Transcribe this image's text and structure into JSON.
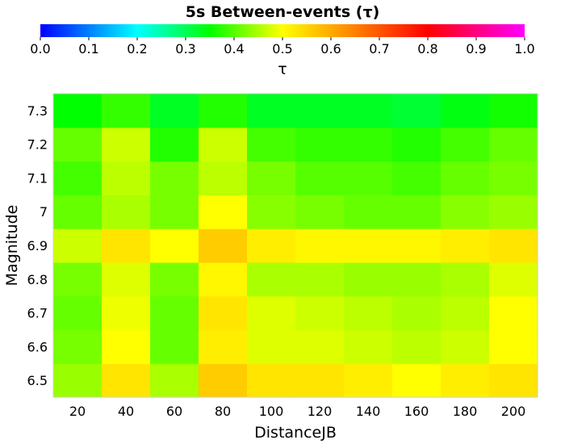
{
  "chart_data": {
    "type": "heatmap",
    "title": "5s Between-events (τ)",
    "xlabel": "DistanceJB",
    "ylabel": "Magnitude",
    "colorbar": {
      "label": "τ",
      "min": 0.0,
      "max": 1.0,
      "ticks": [
        "0.0",
        "0.1",
        "0.2",
        "0.3",
        "0.4",
        "0.5",
        "0.6",
        "0.7",
        "0.8",
        "0.9",
        "1.0"
      ],
      "colormap": "rainbow (blue-cyan-green-yellow-red-magenta)"
    },
    "x": [
      20,
      40,
      60,
      80,
      100,
      120,
      140,
      160,
      180,
      200
    ],
    "y": [
      6.5,
      6.6,
      6.7,
      6.8,
      6.9,
      7,
      7.1,
      7.2,
      7.3
    ],
    "x_tick_labels": [
      "20",
      "40",
      "60",
      "80",
      "100",
      "120",
      "140",
      "160",
      "180",
      "200"
    ],
    "y_tick_labels": [
      "6.5",
      "6.6",
      "6.7",
      "6.8",
      "6.9",
      "7",
      "7.1",
      "7.2",
      "7.3"
    ],
    "xlim": [
      10,
      210
    ],
    "ylim": [
      6.45,
      7.35
    ],
    "values": [
      [
        0.44,
        0.53,
        0.45,
        0.56,
        0.53,
        0.53,
        0.52,
        0.5,
        0.52,
        0.53
      ],
      [
        0.42,
        0.5,
        0.41,
        0.52,
        0.48,
        0.48,
        0.47,
        0.46,
        0.47,
        0.5
      ],
      [
        0.41,
        0.49,
        0.41,
        0.53,
        0.48,
        0.47,
        0.46,
        0.45,
        0.46,
        0.5
      ],
      [
        0.42,
        0.48,
        0.42,
        0.51,
        0.45,
        0.45,
        0.44,
        0.44,
        0.45,
        0.48
      ],
      [
        0.47,
        0.53,
        0.5,
        0.56,
        0.52,
        0.51,
        0.51,
        0.51,
        0.52,
        0.53
      ],
      [
        0.41,
        0.45,
        0.42,
        0.5,
        0.43,
        0.42,
        0.41,
        0.41,
        0.43,
        0.44
      ],
      [
        0.39,
        0.46,
        0.42,
        0.46,
        0.42,
        0.4,
        0.4,
        0.39,
        0.41,
        0.42
      ],
      [
        0.41,
        0.47,
        0.37,
        0.47,
        0.39,
        0.38,
        0.38,
        0.37,
        0.39,
        0.41
      ],
      [
        0.35,
        0.38,
        0.33,
        0.37,
        0.33,
        0.33,
        0.33,
        0.32,
        0.34,
        0.36
      ]
    ]
  }
}
